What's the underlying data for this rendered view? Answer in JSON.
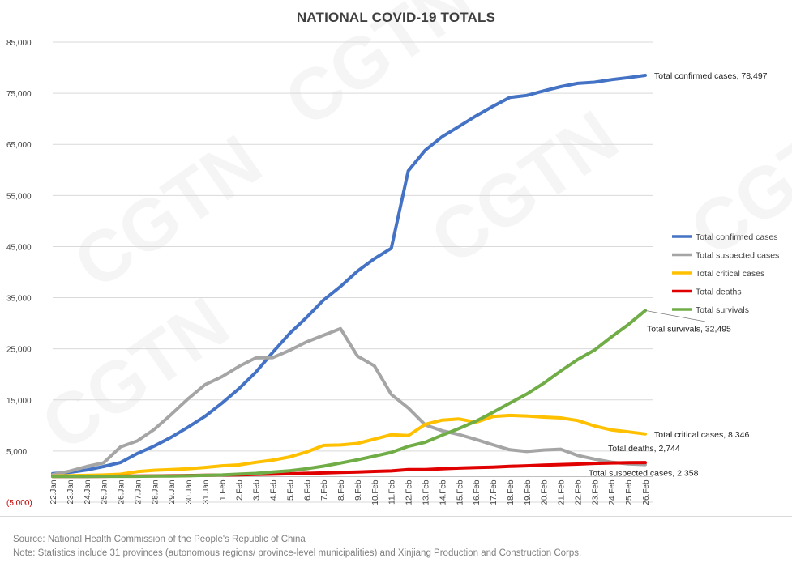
{
  "title": "NATIONAL COVID-19 TOTALS",
  "footer": {
    "source": "Source: National Health Commission of the People's Republic of China",
    "note": "Note: Statistics include 31 provinces (autonomous regions/ province-level municipalities) and  Xinjiang Production and Construction Corps."
  },
  "watermark": "CGTN",
  "chart_data": {
    "type": "line",
    "title": "NATIONAL COVID-19 TOTALS",
    "xlabel": "",
    "ylabel": "",
    "ylim": [
      -5000,
      85000
    ],
    "yticks": [
      85000,
      75000,
      65000,
      55000,
      45000,
      35000,
      25000,
      15000,
      5000,
      -5000
    ],
    "ytick_labels": [
      "85,000",
      "75,000",
      "65,000",
      "55,000",
      "45,000",
      "35,000",
      "25,000",
      "15,000",
      "5,000",
      "(5,000)"
    ],
    "grid": "horizontal",
    "legend_position": "right",
    "x": [
      "22.Jan",
      "23.Jan",
      "24.Jan",
      "25.Jan",
      "26.Jan",
      "27.Jan",
      "28.Jan",
      "29.Jan",
      "30.Jan",
      "31.Jan",
      "1.Feb",
      "2.Feb",
      "3.Feb",
      "4.Feb",
      "5.Feb",
      "6.Feb",
      "7.Feb",
      "8.Feb",
      "9.Feb",
      "10.Feb",
      "11.Feb",
      "12.Feb",
      "13.Feb",
      "14.Feb",
      "15.Feb",
      "16.Feb",
      "17.Feb",
      "18.Feb",
      "19.Feb",
      "20.Feb",
      "21.Feb",
      "22.Feb",
      "23.Feb",
      "24.Feb",
      "25.Feb",
      "26.Feb"
    ],
    "series": [
      {
        "name": "Total confirmed cases",
        "color": "#4472c4",
        "values": [
          571,
          830,
          1287,
          1975,
          2744,
          4515,
          5974,
          7711,
          9692,
          11791,
          14380,
          17205,
          20438,
          24324,
          28018,
          31161,
          34546,
          37198,
          40171,
          42638,
          44653,
          59804,
          63851,
          66492,
          68500,
          70548,
          72436,
          74185,
          74576,
          75465,
          76288,
          76936,
          77150,
          77658,
          78064,
          78497
        ]
      },
      {
        "name": "Total suspected cases",
        "color": "#a5a5a5",
        "values": [
          393,
          1072,
          1965,
          2684,
          5794,
          6973,
          9239,
          12167,
          15238,
          17988,
          19544,
          21558,
          23214,
          23260,
          24702,
          26359,
          27657,
          28942,
          23589,
          21675,
          16067,
          13435,
          10109,
          8969,
          8228,
          7264,
          6242,
          5248,
          4922,
          5206,
          5365,
          4148,
          3434,
          2824,
          2491,
          2358
        ]
      },
      {
        "name": "Total critical cases",
        "color": "#ffc000",
        "values": [
          95,
          177,
          237,
          324,
          461,
          976,
          1239,
          1370,
          1527,
          1795,
          2110,
          2296,
          2788,
          3219,
          3859,
          4821,
          6101,
          6188,
          6484,
          7333,
          8204,
          8030,
          10204,
          11053,
          11272,
          10644,
          11741,
          11977,
          11864,
          11633,
          11477,
          10968,
          9915,
          9126,
          8752,
          8346
        ]
      },
      {
        "name": "Total deaths",
        "color": "#e00000",
        "values": [
          17,
          25,
          41,
          56,
          80,
          106,
          132,
          170,
          213,
          259,
          304,
          361,
          425,
          490,
          563,
          636,
          722,
          811,
          908,
          1016,
          1113,
          1367,
          1380,
          1523,
          1665,
          1770,
          1868,
          2004,
          2118,
          2236,
          2345,
          2442,
          2592,
          2663,
          2715,
          2744
        ]
      },
      {
        "name": "Total survivals",
        "color": "#70ad47",
        "values": [
          28,
          34,
          38,
          49,
          51,
          60,
          103,
          124,
          171,
          243,
          328,
          475,
          632,
          892,
          1153,
          1540,
          2050,
          2649,
          3281,
          3996,
          4740,
          5911,
          6723,
          8096,
          9419,
          10844,
          12552,
          14376,
          16155,
          18264,
          20659,
          22888,
          24734,
          27323,
          29745,
          32495
        ]
      }
    ],
    "legend": [
      "Total confirmed cases",
      "Total suspected cases",
      "Total critical cases",
      "Total deaths",
      "Total survivals"
    ],
    "annotations": [
      {
        "series": "Total confirmed cases",
        "text": "Total confirmed cases, 78,497"
      },
      {
        "series": "Total survivals",
        "text": "Total survivals, 32,495"
      },
      {
        "series": "Total critical cases",
        "text": "Total critical cases, 8,346"
      },
      {
        "series": "Total deaths",
        "text": "Total deaths, 2,744"
      },
      {
        "series": "Total suspected cases",
        "text": "Total suspected cases, 2,358"
      }
    ]
  }
}
